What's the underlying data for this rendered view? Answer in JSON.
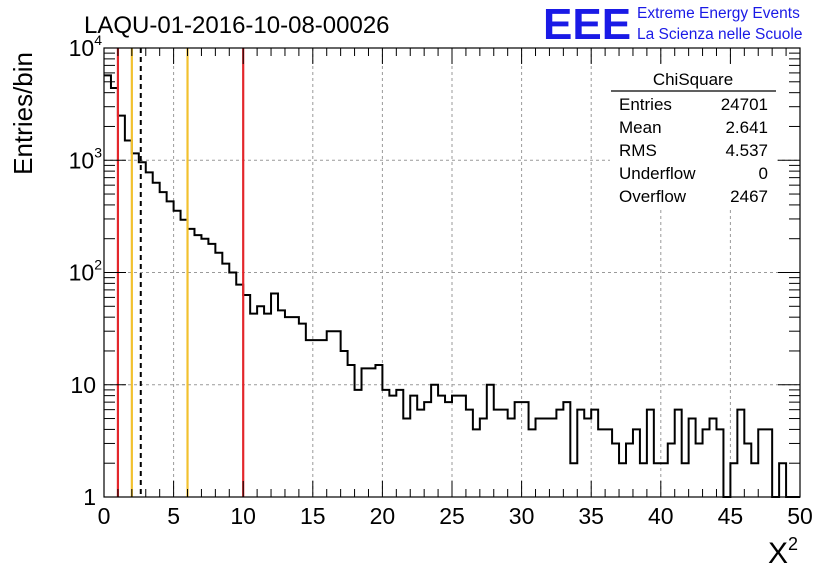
{
  "chart_data": {
    "type": "histogram",
    "title": "LAQU-01-2016-10-08-00026",
    "xlabel": "X",
    "xlabel_superscript": "2",
    "ylabel": "Entries/bin",
    "xlim": [
      0,
      50
    ],
    "ylim": [
      1,
      10000
    ],
    "yscale": "log",
    "grid": true,
    "bin_width": 0.5,
    "x_ticks": [
      "0",
      "5",
      "10",
      "15",
      "20",
      "25",
      "30",
      "35",
      "40",
      "45",
      "50"
    ],
    "y_ticks": [
      {
        "base": "1",
        "exp": ""
      },
      {
        "base": "10",
        "exp": ""
      },
      {
        "base": "10",
        "exp": "2"
      },
      {
        "base": "10",
        "exp": "3"
      },
      {
        "base": "10",
        "exp": "4"
      }
    ],
    "counts": [
      5700,
      4400,
      2500,
      1500,
      1150,
      960,
      780,
      630,
      520,
      430,
      355,
      295,
      245,
      215,
      200,
      180,
      150,
      120,
      100,
      78,
      63,
      43,
      50,
      43,
      65,
      46,
      40,
      40,
      35,
      25,
      25,
      25,
      30,
      30,
      20,
      15,
      9,
      14,
      14,
      15,
      9,
      8,
      9,
      5,
      8,
      6,
      7,
      10,
      8,
      7,
      8,
      8,
      6,
      4,
      5,
      10,
      6,
      6,
      5,
      7,
      7,
      4,
      5,
      5,
      5,
      6,
      7,
      2,
      6,
      5,
      6,
      4,
      4,
      3,
      2,
      3,
      4,
      2,
      6,
      2,
      2,
      3,
      6,
      2,
      5,
      3,
      4,
      5,
      4,
      1,
      2,
      6,
      3,
      2,
      4,
      4,
      1,
      2,
      1,
      1
    ],
    "vertical_lines": [
      {
        "x": 1.0,
        "color": "#e3262b",
        "style": "solid"
      },
      {
        "x": 2.0,
        "color": "#f2c12e",
        "style": "solid"
      },
      {
        "x": 2.641,
        "color": "#000000",
        "style": "dashed"
      },
      {
        "x": 6.0,
        "color": "#f2c12e",
        "style": "solid"
      },
      {
        "x": 10.0,
        "color": "#e3262b",
        "style": "solid"
      }
    ]
  },
  "stats": {
    "title": "ChiSquare",
    "rows": [
      {
        "label": "Entries",
        "value": "24701"
      },
      {
        "label": "Mean",
        "value": "2.641"
      },
      {
        "label": "RMS",
        "value": "4.537"
      },
      {
        "label": "Underflow",
        "value": "0"
      },
      {
        "label": "Overflow",
        "value": "2467"
      }
    ]
  },
  "logo": {
    "acronym": "EEE",
    "line1": "Extreme Energy Events",
    "line2": "La Scienza nelle Scuole",
    "color": "#1a1ae6"
  }
}
